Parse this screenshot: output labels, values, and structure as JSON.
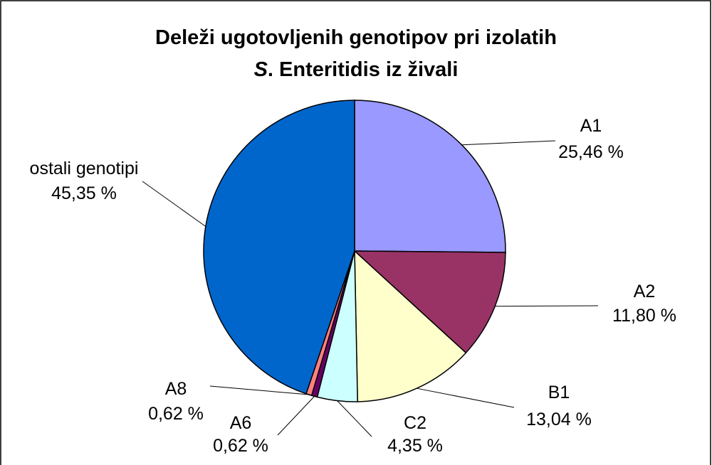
{
  "chart_data": {
    "type": "pie",
    "title": [
      "Deleži ugotovljenih genotipov pri izolatih",
      "S. Enteritidis iz živali"
    ],
    "categories": [
      "A1",
      "A2",
      "B1",
      "C2",
      "A6",
      "A8",
      "ostali genotipi"
    ],
    "values": [
      25.46,
      11.8,
      13.04,
      4.35,
      0.62,
      0.62,
      45.35
    ],
    "value_labels": [
      "25,46 %",
      "11,80 %",
      "13,04 %",
      "4,35 %",
      "0,62 %",
      "0,62 %",
      "45,35 %"
    ],
    "colors": [
      "#9999ff",
      "#993366",
      "#ffffcc",
      "#ccffff",
      "#660066",
      "#ff8080",
      "#0066cc"
    ]
  }
}
